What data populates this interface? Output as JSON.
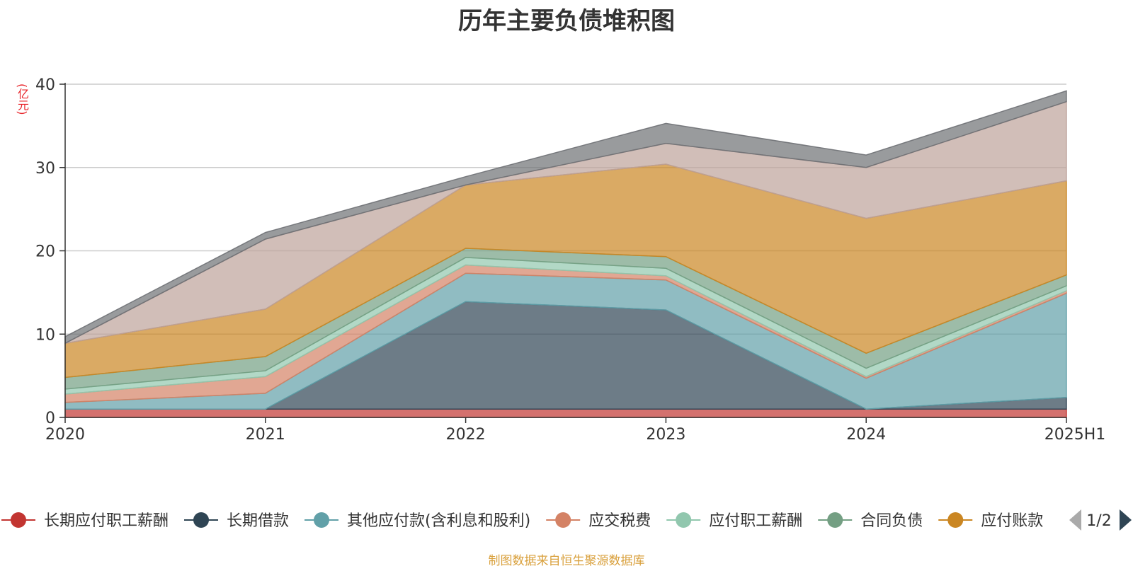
{
  "title": "历年主要负债堆积图",
  "y_unit": "(亿元)",
  "source_note": "制图数据来自恒生聚源数据库",
  "legend_page": "1/2",
  "chart_data": {
    "type": "area",
    "stacked": true,
    "title": "历年主要负债堆积图",
    "ylabel": "(亿元)",
    "xlabel": "",
    "categories": [
      "2020",
      "2021",
      "2022",
      "2023",
      "2024",
      "2025H1"
    ],
    "ylim": [
      0,
      40
    ],
    "yticks": [
      0,
      10,
      20,
      30,
      40
    ],
    "grid": true,
    "legend_position": "bottom",
    "series": [
      {
        "name": "长期应付职工薪酬",
        "color": "#c23531",
        "values": [
          1.0,
          1.0,
          1.0,
          1.0,
          1.0,
          1.0
        ]
      },
      {
        "name": "长期借款",
        "color": "#2f4554",
        "values": [
          0.0,
          0.0,
          12.9,
          11.9,
          0.0,
          1.4
        ]
      },
      {
        "name": "其他应付款(含利息和股利)",
        "color": "#61a0a8",
        "values": [
          0.8,
          1.9,
          3.4,
          3.6,
          3.7,
          12.5
        ]
      },
      {
        "name": "应交税费",
        "color": "#d48265",
        "values": [
          1.0,
          2.0,
          1.0,
          0.5,
          0.2,
          0.3
        ]
      },
      {
        "name": "应付职工薪酬",
        "color": "#91c7ae",
        "values": [
          0.6,
          0.7,
          0.9,
          0.9,
          1.0,
          0.6
        ]
      },
      {
        "name": "合同负债",
        "color": "#749f83",
        "values": [
          1.4,
          1.7,
          1.1,
          1.4,
          1.8,
          1.3
        ]
      },
      {
        "name": "应付账款",
        "color": "#ca8622",
        "values": [
          4.1,
          5.7,
          7.6,
          11.1,
          16.2,
          11.3
        ]
      },
      {
        "name": "",
        "color": "#bda29a",
        "values": [
          0.0,
          8.4,
          0.0,
          2.5,
          6.1,
          9.5
        ]
      },
      {
        "name": "",
        "color": "#6e7074",
        "values": [
          0.8,
          0.8,
          1.0,
          2.4,
          1.5,
          1.3
        ]
      }
    ]
  }
}
